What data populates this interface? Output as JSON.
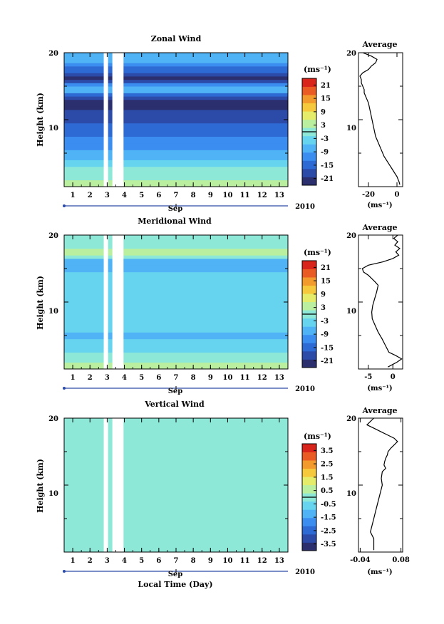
{
  "colors": {
    "scale": [
      "#2b2f6e",
      "#2c4aa8",
      "#2e6ad3",
      "#3b8df0",
      "#4fb3f5",
      "#67d4ef",
      "#8ee8d8",
      "#b9ef9f",
      "#e4ec6a",
      "#f5c93b",
      "#f39a2c",
      "#ea5a23",
      "#d8241a"
    ],
    "zero_line": "#000000"
  },
  "xaxis": {
    "day_ticks": [
      "1",
      "2",
      "3",
      "4",
      "5",
      "6",
      "7",
      "8",
      "9",
      "10",
      "11",
      "12",
      "13"
    ],
    "month": "Sep",
    "year": "2010",
    "xlabel": "Local Time (Day)"
  },
  "chart_data": [
    {
      "type": "heatmap",
      "title": "Zonal Wind",
      "ylabel": "Height (km)",
      "yticks": [
        "10",
        "20"
      ],
      "ylim": [
        0,
        20
      ],
      "xlim": [
        0.5,
        13.5
      ],
      "unit": "(ms⁻¹)",
      "colorbar_ticks": [
        "21",
        "15",
        "9",
        "3",
        "-3",
        "-9",
        "-15",
        "-21"
      ],
      "colorbar_range": [
        -24,
        24
      ],
      "data_gaps_days": [
        [
          2.8,
          3.05
        ],
        [
          3.3,
          3.95
        ]
      ],
      "value_by_height": [
        [
          1,
          2
        ],
        [
          3,
          -2
        ],
        [
          5,
          -8
        ],
        [
          7,
          -12
        ],
        [
          9,
          -16
        ],
        [
          11,
          -20
        ],
        [
          13,
          -22
        ],
        [
          14,
          -10
        ],
        [
          15,
          -6
        ],
        [
          16,
          -24
        ],
        [
          17,
          -18
        ],
        [
          18,
          -12
        ],
        [
          19,
          -8
        ],
        [
          20,
          -6
        ]
      ],
      "average": {
        "title": "Average",
        "xticks": [
          "-20",
          "0"
        ],
        "xlim": [
          -27,
          4
        ],
        "xlabel": "(ms⁻¹)",
        "yticks": [
          "10",
          "20"
        ],
        "profile": [
          [
            0.3,
            2
          ],
          [
            0.7,
            1.5
          ],
          [
            1.5,
            0
          ],
          [
            2.5,
            -3
          ],
          [
            3.5,
            -6
          ],
          [
            4.5,
            -9
          ],
          [
            5.5,
            -11
          ],
          [
            6.5,
            -13
          ],
          [
            7.5,
            -15
          ],
          [
            8.5,
            -16
          ],
          [
            9.5,
            -17
          ],
          [
            10.5,
            -18
          ],
          [
            11.5,
            -19
          ],
          [
            12.5,
            -20
          ],
          [
            13,
            -21
          ],
          [
            13.5,
            -22
          ],
          [
            14,
            -23
          ],
          [
            14.5,
            -23
          ],
          [
            15,
            -24
          ],
          [
            15.5,
            -25
          ],
          [
            16,
            -25
          ],
          [
            16.5,
            -26
          ],
          [
            17,
            -24
          ],
          [
            17.5,
            -20
          ],
          [
            18,
            -18
          ],
          [
            18.5,
            -15
          ],
          [
            19,
            -14
          ],
          [
            19.5,
            -18
          ],
          [
            20,
            -24
          ]
        ]
      }
    },
    {
      "type": "heatmap",
      "title": "Meridional Wind",
      "ylabel": "Height (km)",
      "yticks": [
        "10",
        "20"
      ],
      "ylim": [
        0,
        20
      ],
      "xlim": [
        0.5,
        13.5
      ],
      "unit": "(ms⁻¹)",
      "colorbar_ticks": [
        "21",
        "15",
        "9",
        "3",
        "-3",
        "-9",
        "-15",
        "-21"
      ],
      "colorbar_range": [
        -24,
        24
      ],
      "data_gaps_days": [
        [
          2.8,
          3.05
        ],
        [
          3.3,
          3.95
        ]
      ],
      "value_by_height": [
        [
          1,
          2
        ],
        [
          3,
          -4
        ],
        [
          5,
          -6
        ],
        [
          7,
          -4
        ],
        [
          9,
          -2
        ],
        [
          11,
          -2
        ],
        [
          13,
          -4
        ],
        [
          15,
          -6
        ],
        [
          16,
          -10
        ],
        [
          17,
          4
        ],
        [
          18,
          2
        ],
        [
          19,
          0
        ],
        [
          20,
          -2
        ]
      ],
      "average": {
        "title": "Average",
        "xticks": [
          "-5",
          "0"
        ],
        "xlim": [
          -7,
          2
        ],
        "xlabel": "(ms⁻¹)",
        "yticks": [
          "10",
          "20"
        ],
        "profile": [
          [
            0.3,
            -1
          ],
          [
            1,
            0.8
          ],
          [
            1.5,
            1.8
          ],
          [
            2,
            0.6
          ],
          [
            2.5,
            -0.8
          ],
          [
            3.5,
            -1.5
          ],
          [
            4.5,
            -2.2
          ],
          [
            5.5,
            -3
          ],
          [
            6.5,
            -3.6
          ],
          [
            7.5,
            -4.2
          ],
          [
            8.5,
            -4.3
          ],
          [
            9.5,
            -4.1
          ],
          [
            10.5,
            -3.7
          ],
          [
            11.5,
            -3.3
          ],
          [
            12.5,
            -3
          ],
          [
            13,
            -3.6
          ],
          [
            13.5,
            -4.3
          ],
          [
            14,
            -5
          ],
          [
            14.5,
            -6
          ],
          [
            15,
            -6.2
          ],
          [
            15.5,
            -5
          ],
          [
            16,
            -2
          ],
          [
            16.5,
            0
          ],
          [
            17,
            1.2
          ],
          [
            17.5,
            0.6
          ],
          [
            18,
            1.4
          ],
          [
            18.5,
            0.4
          ],
          [
            19,
            1
          ],
          [
            19.5,
            0.2
          ],
          [
            20,
            1
          ]
        ]
      }
    },
    {
      "type": "heatmap",
      "title": "Vertical Wind",
      "ylabel": "Height (km)",
      "yticks": [
        "10",
        "20"
      ],
      "ylim": [
        0,
        20
      ],
      "xlim": [
        0.5,
        13.5
      ],
      "unit": "(ms⁻¹)",
      "colorbar_ticks": [
        "3.5",
        "2.5",
        "1.5",
        "0.5",
        "-0.5",
        "-1.5",
        "-2.5",
        "-3.5"
      ],
      "colorbar_range": [
        -4,
        4
      ],
      "data_gaps_days": [
        [
          2.8,
          3.05
        ],
        [
          3.3,
          3.95
        ]
      ],
      "value_by_height": [
        [
          1,
          0
        ],
        [
          20,
          0
        ]
      ],
      "average": {
        "title": "Average",
        "xticks": [
          "-0.04",
          "0.08"
        ],
        "xlim": [
          -0.045,
          0.085
        ],
        "xlabel": "(ms⁻¹)",
        "yticks": [
          "10",
          "20"
        ],
        "profile": [
          [
            0.3,
            0
          ],
          [
            1,
            0
          ],
          [
            2,
            0
          ],
          [
            3,
            -0.01
          ],
          [
            4,
            -0.005
          ],
          [
            5,
            0
          ],
          [
            6,
            0.005
          ],
          [
            7,
            0.01
          ],
          [
            8,
            0.015
          ],
          [
            9,
            0.02
          ],
          [
            10,
            0.025
          ],
          [
            11,
            0.022
          ],
          [
            12,
            0.025
          ],
          [
            12.5,
            0.035
          ],
          [
            13,
            0.03
          ],
          [
            13.5,
            0.032
          ],
          [
            14,
            0.035
          ],
          [
            14.5,
            0.04
          ],
          [
            15,
            0.042
          ],
          [
            15.5,
            0.05
          ],
          [
            16,
            0.06
          ],
          [
            16.5,
            0.07
          ],
          [
            17,
            0.06
          ],
          [
            17.5,
            0.04
          ],
          [
            18,
            0.02
          ],
          [
            18.5,
            0
          ],
          [
            19,
            -0.02
          ],
          [
            19.5,
            -0.01
          ],
          [
            20,
            0
          ]
        ]
      }
    }
  ]
}
